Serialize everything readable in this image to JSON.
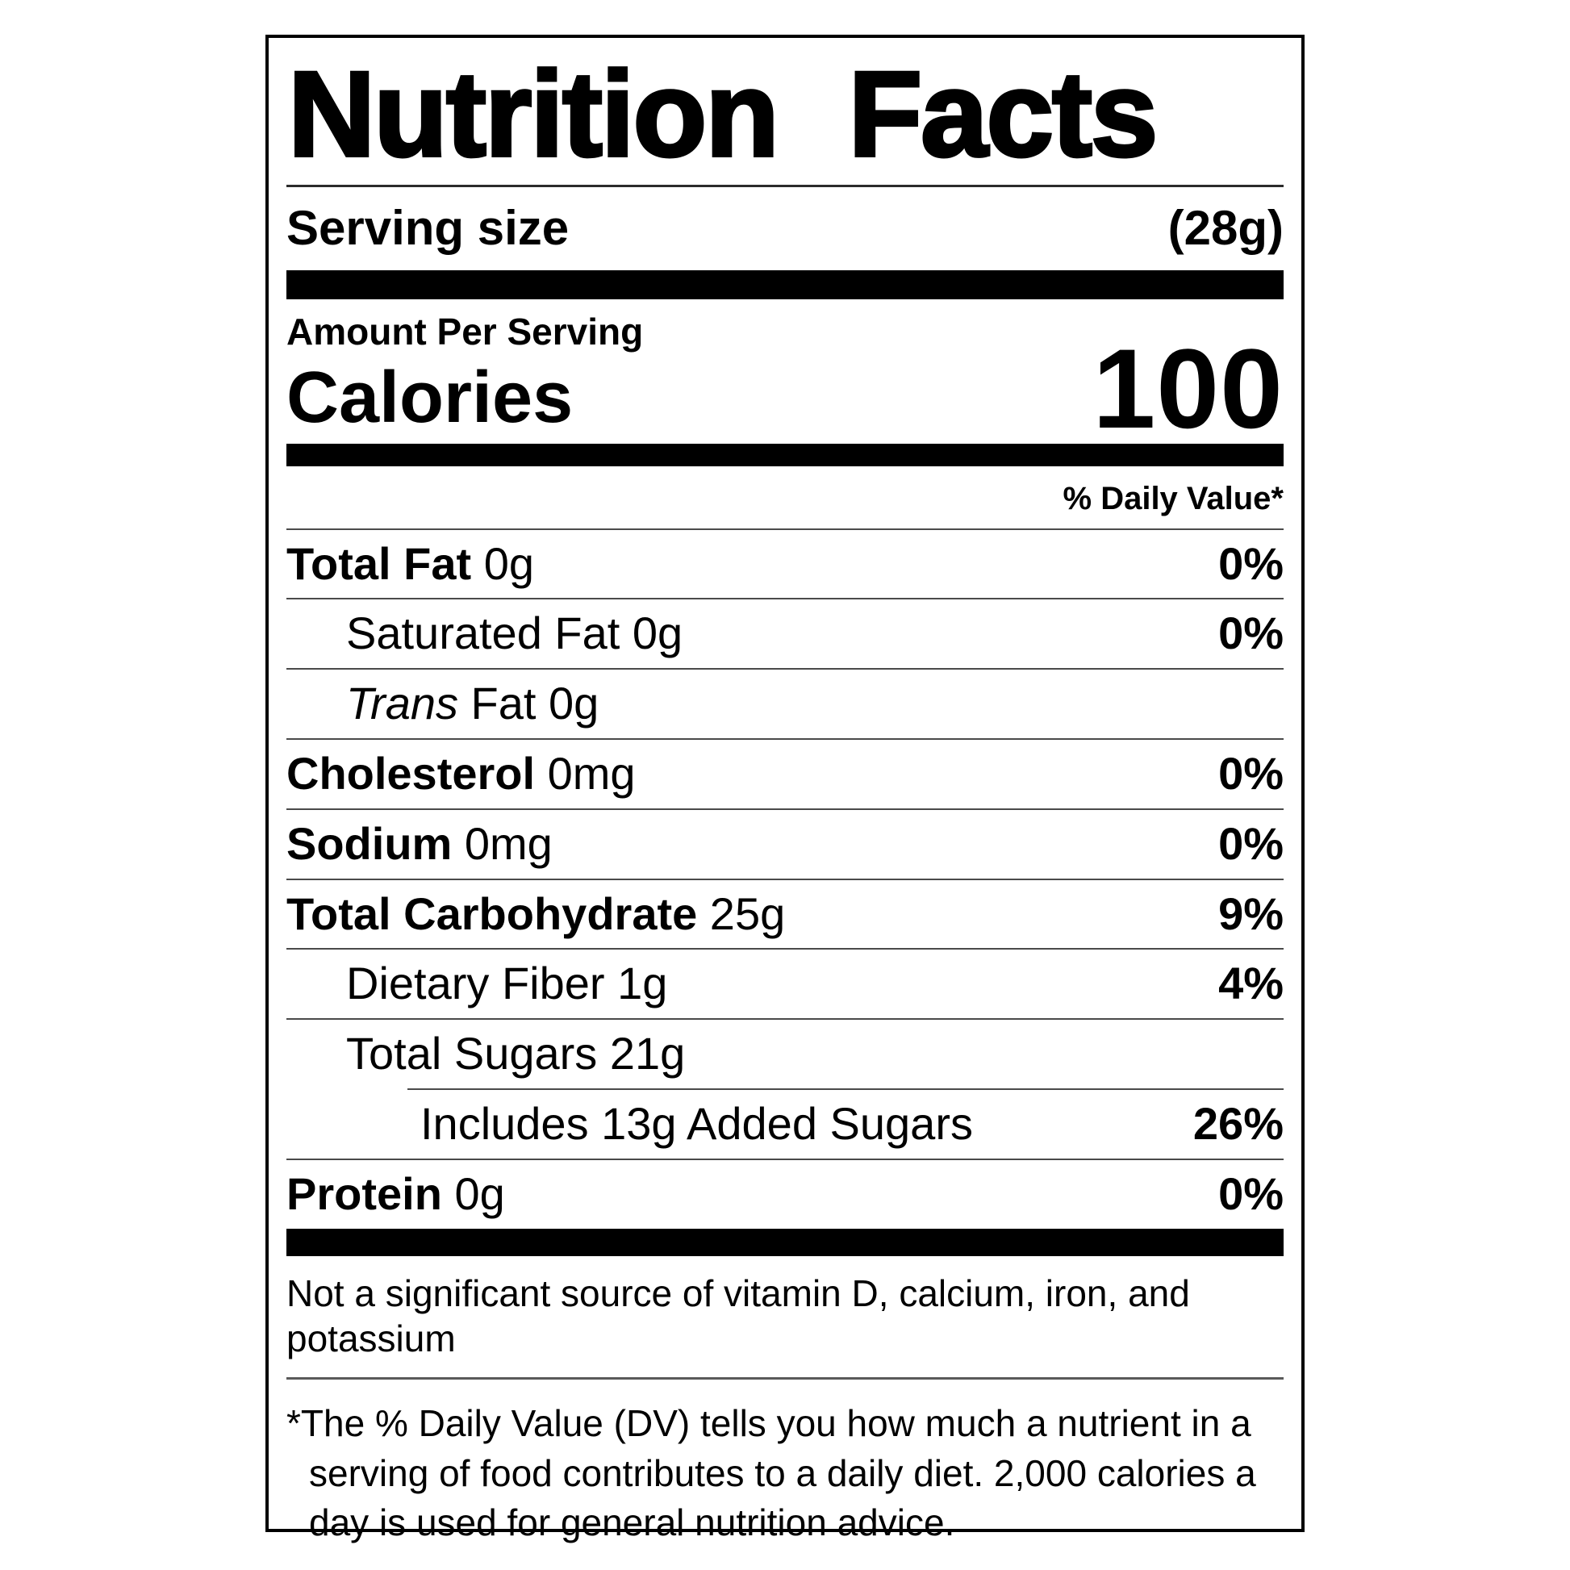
{
  "title": "Nutrition Facts",
  "serving": {
    "label": "Serving size",
    "value": "(28g)"
  },
  "calories": {
    "amount_per_serving": "Amount Per Serving",
    "label": "Calories",
    "value": "100"
  },
  "daily_value_header": "% Daily Value*",
  "nutrients": {
    "rows": [
      {
        "label": "Total Fat",
        "style": "bold",
        "amount": "0g",
        "dv": "0%",
        "indent": 0,
        "separator": "full"
      },
      {
        "label": "Saturated Fat",
        "style": "regular",
        "amount": "0g",
        "dv": "0%",
        "indent": 1,
        "separator": "full"
      },
      {
        "label": "Trans",
        "style": "italic",
        "amount": "Fat 0g",
        "dv": "",
        "indent": 1,
        "separator": "full"
      },
      {
        "label": "Cholesterol",
        "style": "bold",
        "amount": "0mg",
        "dv": "0%",
        "indent": 0,
        "separator": "full"
      },
      {
        "label": "Sodium",
        "style": "bold",
        "amount": "0mg",
        "dv": "0%",
        "indent": 0,
        "separator": "full"
      },
      {
        "label": "Total Carbohydrate",
        "style": "bold",
        "amount": "25g",
        "dv": "9%",
        "indent": 0,
        "separator": "full"
      },
      {
        "label": "Dietary Fiber",
        "style": "regular",
        "amount": "1g",
        "dv": "4%",
        "indent": 1,
        "separator": "full"
      },
      {
        "label": "Total Sugars",
        "style": "regular",
        "amount": "21g",
        "dv": "",
        "indent": 1,
        "separator": "full"
      },
      {
        "label": "Includes 13g Added Sugars",
        "style": "regular",
        "amount": "",
        "dv": "26%",
        "indent": 2,
        "separator": "indent"
      },
      {
        "label": "Protein",
        "style": "bold",
        "amount": "0g",
        "dv": "0%",
        "indent": 0,
        "separator": "full"
      }
    ]
  },
  "notes": {
    "not_significant": "Not a significant source of vitamin D, calcium, iron, and potassium",
    "footnote": "*The % Daily Value (DV) tells you how much a nutrient in a serving of food contributes to a daily diet. 2,000 calories a day is used for general nutrition advice."
  },
  "colors": {
    "background": "#ffffff",
    "text": "#000000",
    "thick_bar": "#000000",
    "separator": "#4a4a4a",
    "border": "#000000"
  }
}
